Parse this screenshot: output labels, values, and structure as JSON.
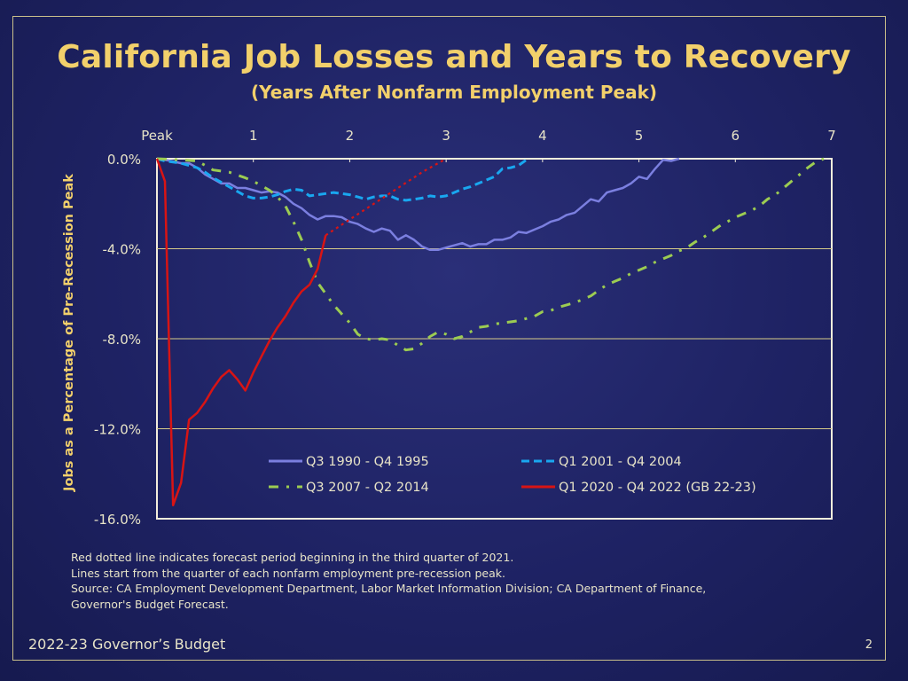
{
  "title": "California Job Losses and Years to Recovery",
  "subtitle": "(Years After Nonfarm Employment Peak)",
  "notes": [
    "Red dotted line indicates forecast period beginning in the third quarter of 2021.",
    "Lines start from the quarter of each nonfarm employment pre-recession peak.",
    "Source: CA Employment Development Department, Labor Market Information Division; CA Department of Finance,",
    "Governor's Budget Forecast."
  ],
  "footer": {
    "left": "2022-23 Governor’s Budget",
    "page_number": "2"
  },
  "colors": {
    "title": "#f2d06b",
    "gridline": "#d8cc88",
    "series_1990": "#7b7fe0",
    "series_2001": "#19a7f0",
    "series_2007": "#9ccc52",
    "series_2020": "#d81414"
  },
  "chart_data": {
    "type": "line",
    "title": "",
    "xlabel": "",
    "ylabel": "Jobs as a Percentage of Pre-Recession Peak",
    "x_tick_labels": [
      "Peak",
      "1",
      "2",
      "3",
      "4",
      "5",
      "6",
      "7"
    ],
    "x_ticks": [
      0,
      1,
      2,
      3,
      4,
      5,
      6,
      7
    ],
    "y_tick_labels": [
      "0.0%",
      "-4.0%",
      "-8.0%",
      "-12.0%",
      "-16.0%"
    ],
    "y_ticks": [
      0,
      -4,
      -8,
      -12,
      -16
    ],
    "xlim": [
      0,
      7
    ],
    "ylim": [
      -16,
      0
    ],
    "grid": "horizontal",
    "legend_position": "bottom-inside",
    "series": [
      {
        "name": "Q3 1990 - Q4 1995",
        "color": "#7b7fe0",
        "style": "solid",
        "points": [
          [
            0,
            0
          ],
          [
            0.083,
            -0.05
          ],
          [
            0.167,
            -0.12
          ],
          [
            0.25,
            -0.2
          ],
          [
            0.333,
            -0.2
          ],
          [
            0.417,
            -0.4
          ],
          [
            0.5,
            -0.7
          ],
          [
            0.583,
            -0.9
          ],
          [
            0.667,
            -1.1
          ],
          [
            0.75,
            -1.1
          ],
          [
            0.833,
            -1.3
          ],
          [
            0.917,
            -1.3
          ],
          [
            1.0,
            -1.4
          ],
          [
            1.083,
            -1.5
          ],
          [
            1.167,
            -1.45
          ],
          [
            1.25,
            -1.5
          ],
          [
            1.333,
            -1.7
          ],
          [
            1.417,
            -2.0
          ],
          [
            1.5,
            -2.2
          ],
          [
            1.583,
            -2.5
          ],
          [
            1.667,
            -2.7
          ],
          [
            1.75,
            -2.55
          ],
          [
            1.833,
            -2.55
          ],
          [
            1.917,
            -2.6
          ],
          [
            2.0,
            -2.8
          ],
          [
            2.083,
            -2.9
          ],
          [
            2.167,
            -3.1
          ],
          [
            2.25,
            -3.25
          ],
          [
            2.333,
            -3.1
          ],
          [
            2.417,
            -3.2
          ],
          [
            2.5,
            -3.6
          ],
          [
            2.583,
            -3.4
          ],
          [
            2.667,
            -3.6
          ],
          [
            2.75,
            -3.9
          ],
          [
            2.833,
            -4.05
          ],
          [
            2.917,
            -4.05
          ],
          [
            3.0,
            -3.95
          ],
          [
            3.083,
            -3.85
          ],
          [
            3.167,
            -3.75
          ],
          [
            3.25,
            -3.9
          ],
          [
            3.333,
            -3.8
          ],
          [
            3.417,
            -3.8
          ],
          [
            3.5,
            -3.6
          ],
          [
            3.583,
            -3.6
          ],
          [
            3.667,
            -3.5
          ],
          [
            3.75,
            -3.25
          ],
          [
            3.833,
            -3.3
          ],
          [
            3.917,
            -3.15
          ],
          [
            4.0,
            -3.0
          ],
          [
            4.083,
            -2.8
          ],
          [
            4.167,
            -2.7
          ],
          [
            4.25,
            -2.5
          ],
          [
            4.333,
            -2.4
          ],
          [
            4.417,
            -2.1
          ],
          [
            4.5,
            -1.8
          ],
          [
            4.583,
            -1.9
          ],
          [
            4.667,
            -1.5
          ],
          [
            4.75,
            -1.4
          ],
          [
            4.833,
            -1.3
          ],
          [
            4.917,
            -1.1
          ],
          [
            5.0,
            -0.8
          ],
          [
            5.083,
            -0.9
          ],
          [
            5.167,
            -0.45
          ],
          [
            5.25,
            -0.05
          ],
          [
            5.333,
            -0.1
          ],
          [
            5.417,
            0
          ]
        ]
      },
      {
        "name": "Q1 2001 - Q4 2004",
        "color": "#19a7f0",
        "style": "dash",
        "points": [
          [
            0,
            0
          ],
          [
            0.083,
            -0.1
          ],
          [
            0.167,
            -0.15
          ],
          [
            0.25,
            -0.2
          ],
          [
            0.333,
            -0.3
          ],
          [
            0.417,
            -0.4
          ],
          [
            0.5,
            -0.6
          ],
          [
            0.583,
            -0.85
          ],
          [
            0.667,
            -1.05
          ],
          [
            0.75,
            -1.25
          ],
          [
            0.833,
            -1.45
          ],
          [
            0.917,
            -1.65
          ],
          [
            1.0,
            -1.75
          ],
          [
            1.083,
            -1.75
          ],
          [
            1.167,
            -1.7
          ],
          [
            1.25,
            -1.6
          ],
          [
            1.333,
            -1.45
          ],
          [
            1.417,
            -1.35
          ],
          [
            1.5,
            -1.4
          ],
          [
            1.583,
            -1.65
          ],
          [
            1.667,
            -1.6
          ],
          [
            1.75,
            -1.55
          ],
          [
            1.833,
            -1.5
          ],
          [
            1.917,
            -1.55
          ],
          [
            2.0,
            -1.6
          ],
          [
            2.083,
            -1.7
          ],
          [
            2.167,
            -1.8
          ],
          [
            2.25,
            -1.7
          ],
          [
            2.333,
            -1.65
          ],
          [
            2.417,
            -1.65
          ],
          [
            2.5,
            -1.8
          ],
          [
            2.583,
            -1.85
          ],
          [
            2.667,
            -1.8
          ],
          [
            2.75,
            -1.75
          ],
          [
            2.833,
            -1.65
          ],
          [
            2.917,
            -1.7
          ],
          [
            3.0,
            -1.65
          ],
          [
            3.083,
            -1.5
          ],
          [
            3.167,
            -1.35
          ],
          [
            3.25,
            -1.25
          ],
          [
            3.333,
            -1.1
          ],
          [
            3.417,
            -0.95
          ],
          [
            3.5,
            -0.8
          ],
          [
            3.583,
            -0.45
          ],
          [
            3.667,
            -0.4
          ],
          [
            3.75,
            -0.3
          ],
          [
            3.833,
            -0.05
          ]
        ]
      },
      {
        "name": "Q3 2007 - Q2 2014",
        "color": "#9ccc52",
        "style": "dash-dot",
        "points": [
          [
            0,
            0
          ],
          [
            0.25,
            -0.05
          ],
          [
            0.417,
            -0.1
          ],
          [
            0.5,
            -0.3
          ],
          [
            0.583,
            -0.5
          ],
          [
            0.75,
            -0.6
          ],
          [
            0.917,
            -0.85
          ],
          [
            1.0,
            -1.0
          ],
          [
            1.083,
            -1.2
          ],
          [
            1.167,
            -1.4
          ],
          [
            1.25,
            -1.7
          ],
          [
            1.333,
            -2.1
          ],
          [
            1.417,
            -2.8
          ],
          [
            1.5,
            -3.6
          ],
          [
            1.583,
            -4.6
          ],
          [
            1.667,
            -5.5
          ],
          [
            1.75,
            -6.0
          ],
          [
            1.833,
            -6.5
          ],
          [
            1.917,
            -6.9
          ],
          [
            2.0,
            -7.3
          ],
          [
            2.083,
            -7.8
          ],
          [
            2.167,
            -8.0
          ],
          [
            2.25,
            -8.05
          ],
          [
            2.333,
            -8.0
          ],
          [
            2.417,
            -8.05
          ],
          [
            2.5,
            -8.3
          ],
          [
            2.583,
            -8.5
          ],
          [
            2.667,
            -8.45
          ],
          [
            2.75,
            -8.2
          ],
          [
            2.833,
            -7.9
          ],
          [
            2.917,
            -7.7
          ],
          [
            3.0,
            -7.8
          ],
          [
            3.083,
            -8.0
          ],
          [
            3.167,
            -7.9
          ],
          [
            3.25,
            -7.7
          ],
          [
            3.333,
            -7.5
          ],
          [
            3.417,
            -7.45
          ],
          [
            3.5,
            -7.35
          ],
          [
            3.583,
            -7.3
          ],
          [
            3.667,
            -7.25
          ],
          [
            3.75,
            -7.2
          ],
          [
            3.833,
            -7.1
          ],
          [
            3.917,
            -7.0
          ],
          [
            4.0,
            -6.8
          ],
          [
            4.083,
            -6.75
          ],
          [
            4.167,
            -6.6
          ],
          [
            4.25,
            -6.5
          ],
          [
            4.333,
            -6.4
          ],
          [
            4.417,
            -6.25
          ],
          [
            4.5,
            -6.1
          ],
          [
            4.583,
            -5.85
          ],
          [
            4.667,
            -5.6
          ],
          [
            4.75,
            -5.45
          ],
          [
            4.833,
            -5.3
          ],
          [
            4.917,
            -5.1
          ],
          [
            5.0,
            -4.95
          ],
          [
            5.083,
            -4.8
          ],
          [
            5.167,
            -4.6
          ],
          [
            5.25,
            -4.45
          ],
          [
            5.333,
            -4.3
          ],
          [
            5.417,
            -4.1
          ],
          [
            5.5,
            -3.95
          ],
          [
            5.583,
            -3.7
          ],
          [
            5.667,
            -3.5
          ],
          [
            5.75,
            -3.25
          ],
          [
            5.833,
            -3.0
          ],
          [
            5.917,
            -2.8
          ],
          [
            6.0,
            -2.6
          ],
          [
            6.083,
            -2.45
          ],
          [
            6.167,
            -2.3
          ],
          [
            6.25,
            -2.1
          ],
          [
            6.333,
            -1.8
          ],
          [
            6.417,
            -1.6
          ],
          [
            6.5,
            -1.3
          ],
          [
            6.583,
            -1.0
          ],
          [
            6.667,
            -0.7
          ],
          [
            6.75,
            -0.4
          ],
          [
            6.833,
            -0.15
          ],
          [
            6.917,
            0
          ]
        ]
      },
      {
        "name": "Q1 2020 - Q4 2022 (GB 22-23)",
        "color": "#d81414",
        "style": "solid-then-dotted",
        "actual_points": [
          [
            0,
            0
          ],
          [
            0.083,
            -1.0
          ],
          [
            0.167,
            -15.4
          ],
          [
            0.25,
            -14.4
          ],
          [
            0.333,
            -11.6
          ],
          [
            0.417,
            -11.3
          ],
          [
            0.5,
            -10.8
          ],
          [
            0.583,
            -10.2
          ],
          [
            0.667,
            -9.7
          ],
          [
            0.75,
            -9.4
          ],
          [
            0.833,
            -9.8
          ],
          [
            0.917,
            -10.3
          ],
          [
            1.0,
            -9.5
          ],
          [
            1.083,
            -8.8
          ],
          [
            1.167,
            -8.1
          ],
          [
            1.25,
            -7.5
          ],
          [
            1.333,
            -7.0
          ],
          [
            1.417,
            -6.4
          ],
          [
            1.5,
            -5.9
          ],
          [
            1.583,
            -5.6
          ],
          [
            1.667,
            -4.9
          ],
          [
            1.75,
            -3.4
          ]
        ],
        "forecast_points": [
          [
            1.75,
            -3.4
          ],
          [
            2.0,
            -2.7
          ],
          [
            2.25,
            -2.0
          ],
          [
            2.5,
            -1.3
          ],
          [
            2.75,
            -0.6
          ],
          [
            3.0,
            0
          ]
        ]
      }
    ]
  }
}
